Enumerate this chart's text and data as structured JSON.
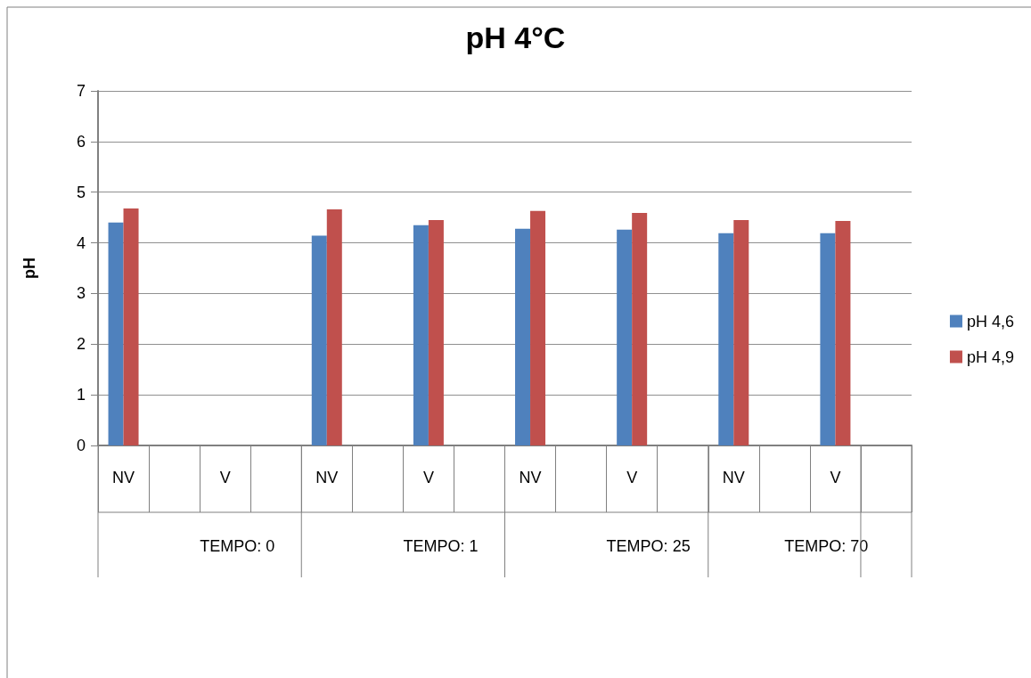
{
  "chart_data": {
    "type": "bar",
    "title": "pH 4°C",
    "ylabel": "pH",
    "categories": [
      "NV",
      null,
      "V",
      null,
      "NV",
      null,
      "V",
      null,
      "NV",
      null,
      "V",
      null,
      "NV",
      null,
      "V",
      null
    ],
    "series": [
      {
        "name": "pH 4,6",
        "color": "#4f81bd",
        "values": [
          4.4,
          null,
          null,
          null,
          4.14,
          null,
          4.35,
          null,
          4.28,
          null,
          4.26,
          null,
          4.19,
          null,
          4.19,
          null
        ]
      },
      {
        "name": "pH 4,9",
        "color": "#c0504d",
        "values": [
          4.68,
          null,
          null,
          null,
          4.66,
          null,
          4.45,
          null,
          4.63,
          null,
          4.59,
          null,
          4.45,
          null,
          4.43,
          null
        ]
      }
    ],
    "annotations": [
      "TEMPO: 0",
      "TEMPO: 1",
      "TEMPO: 25",
      "TEMPO: 70"
    ],
    "ylim": [
      0,
      7
    ],
    "yticks": [
      0,
      1,
      2,
      3,
      4,
      5,
      6,
      7
    ],
    "grid": "y",
    "legend": "right"
  }
}
